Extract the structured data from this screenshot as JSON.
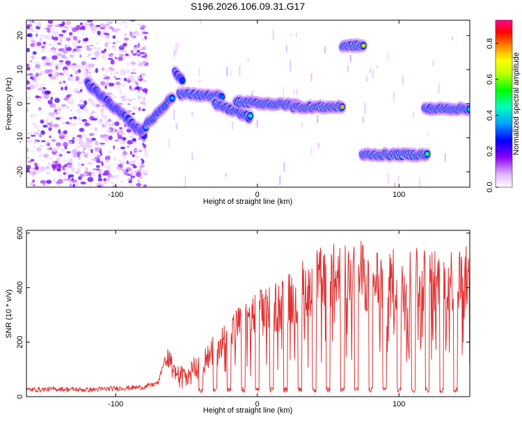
{
  "title": "S196.2026.106.09.31.G17",
  "chart_data": [
    {
      "type": "heatmap",
      "xlabel": "Height of straight line (km)",
      "ylabel": "Frequency (Hz)",
      "xlim": [
        -163,
        150
      ],
      "ylim": [
        -24.5,
        24.5
      ],
      "xticks": [
        -100,
        0,
        100
      ],
      "yticks": [
        -20,
        -10,
        0,
        10,
        20
      ],
      "colorbar": {
        "label": "Normalized spectral amplitude",
        "range": [
          0,
          0.93
        ],
        "ticks": [
          0.0,
          0.2,
          0.4,
          0.6,
          0.8
        ],
        "colormap": [
          "#ffffff",
          "#a855f7",
          "#3a00ff",
          "#0050ff",
          "#00c8ff",
          "#00ff80",
          "#40ff00",
          "#ffff00",
          "#ff8000",
          "#ff0000",
          "#ff0090"
        ]
      },
      "ridge_segments": [
        {
          "x": [
            -163,
            -105
          ],
          "freq": [
            8,
            8
          ],
          "amp": 0.18,
          "noisy": true
        },
        {
          "x": [
            -120,
            -80
          ],
          "freq": [
            6,
            -9
          ],
          "amp": 0.35
        },
        {
          "x": [
            -82,
            -60
          ],
          "freq": [
            -8,
            2
          ],
          "amp": 0.45
        },
        {
          "x": [
            -58,
            -53
          ],
          "freq": [
            9,
            7
          ],
          "amp": 0.3
        },
        {
          "x": [
            -55,
            -25
          ],
          "freq": [
            3,
            2
          ],
          "amp": 0.55
        },
        {
          "x": [
            -30,
            -5
          ],
          "freq": [
            0,
            -4
          ],
          "amp": 0.5
        },
        {
          "x": [
            -15,
            30
          ],
          "freq": [
            0.5,
            -0.5
          ],
          "amp": 0.6
        },
        {
          "x": [
            25,
            60
          ],
          "freq": [
            -1,
            -1
          ],
          "amp": 0.8
        },
        {
          "x": [
            60,
            75
          ],
          "freq": [
            17,
            17
          ],
          "amp": 0.75
        },
        {
          "x": [
            74,
            120
          ],
          "freq": [
            -15,
            -15
          ],
          "amp": 0.7
        },
        {
          "x": [
            118,
            150
          ],
          "freq": [
            -1.5,
            -1.5
          ],
          "amp": 0.55
        }
      ]
    },
    {
      "type": "line",
      "xlabel": "Height of straight line (km)",
      "ylabel": "SNR (10 * v/v)",
      "xlim": [
        -163,
        150
      ],
      "ylim": [
        0,
        610
      ],
      "xticks": [
        -100,
        0,
        100
      ],
      "yticks": [
        0,
        200,
        400,
        600
      ],
      "color": "#e03030",
      "series": [
        {
          "name": "SNR",
          "x": [
            -163,
            -140,
            -120,
            -100,
            -80,
            -70,
            -62,
            -58,
            -50,
            -40,
            -30,
            -20,
            -10,
            0,
            10,
            20,
            30,
            40,
            50,
            60,
            70,
            80,
            90,
            100,
            110,
            120,
            130,
            140,
            150
          ],
          "y": [
            25,
            28,
            25,
            30,
            35,
            50,
            200,
            110,
            120,
            170,
            230,
            300,
            350,
            390,
            420,
            450,
            500,
            540,
            560,
            570,
            580,
            560,
            550,
            540,
            560,
            550,
            540,
            560,
            550
          ],
          "dips": [
            -40,
            -30,
            -20,
            -10,
            0,
            10,
            20,
            30,
            40,
            50,
            60,
            70,
            80,
            90,
            100,
            110,
            120,
            130,
            140
          ]
        }
      ]
    }
  ]
}
